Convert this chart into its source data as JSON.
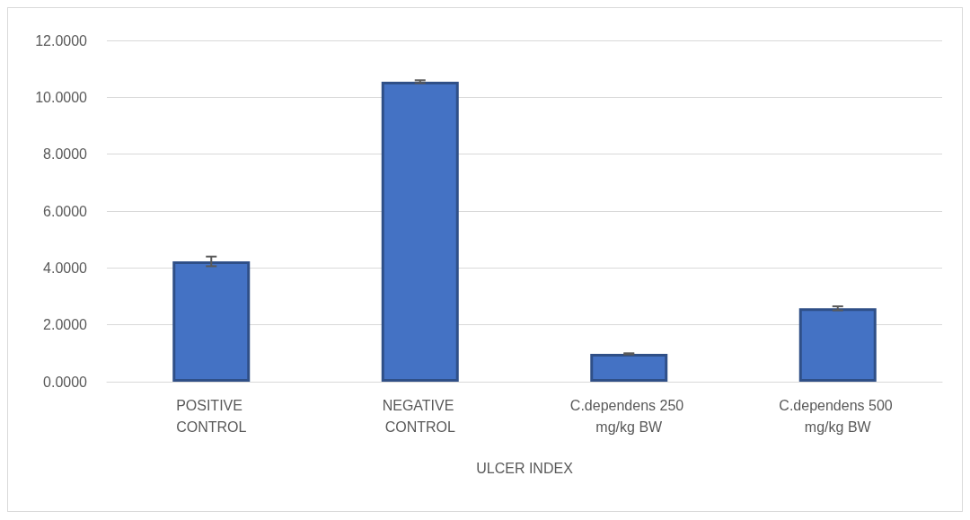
{
  "chart_data": {
    "type": "bar",
    "xlabel": "ULCER INDEX",
    "categories": [
      "POSITIVE CONTROL",
      "NEGATIVE CONTROL",
      "C.dependens 250 mg/kg BW",
      "C.dependens 500 mg/kg BW"
    ],
    "values": [
      4.23,
      10.55,
      0.98,
      2.58
    ],
    "errors": [
      0.17,
      0.05,
      0.02,
      0.07
    ],
    "color": "#4472c4",
    "ylim": [
      0,
      12
    ],
    "yticks": [
      {
        "value": 0,
        "label": "0.0000"
      },
      {
        "value": 2,
        "label": "2.0000"
      },
      {
        "value": 4,
        "label": "4.0000"
      },
      {
        "value": 6,
        "label": "6.0000"
      },
      {
        "value": 8,
        "label": "8.0000"
      },
      {
        "value": 10,
        "label": "10.0000"
      },
      {
        "value": 12,
        "label": "12.0000"
      }
    ],
    "grid": "y"
  }
}
